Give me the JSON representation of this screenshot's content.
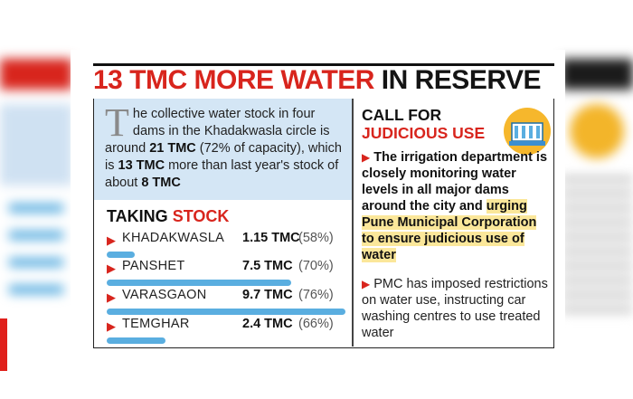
{
  "headline": {
    "part1": "13 TMC MORE WATER",
    "part2": "IN RESERVE"
  },
  "intro": {
    "dropcap": "T",
    "text_a": "he collective water stock in four dams in the Khadakwasla circle is around ",
    "bold_1": "21 TMC",
    "text_b": " (72% of capacity), which is ",
    "bold_2": "13 TMC",
    "text_c": " more than last year's stock of about ",
    "bold_3": "8 TMC"
  },
  "taking_stock": {
    "title_a": "TAKING",
    "title_b": "STOCK",
    "dams": [
      {
        "name": "KHADAKWASLA",
        "amount": "1.15 TMC",
        "percent": "(58%)",
        "tmc": 1.15
      },
      {
        "name": "PANSHET",
        "amount": "7.5 TMC",
        "percent": "(70%)",
        "tmc": 7.5
      },
      {
        "name": "VARASGAON",
        "amount": "9.7 TMC",
        "percent": "(76%)",
        "tmc": 9.7
      },
      {
        "name": "TEMGHAR",
        "amount": "2.4 TMC",
        "percent": "(66%)",
        "tmc": 2.4
      }
    ]
  },
  "call": {
    "title_a": "CALL FOR",
    "title_b": "JUDICIOUS USE",
    "para1_a": "The irrigation department is closely monitoring water levels in all major dams around the city and ",
    "para1_hl": "urging Pune Municipal Corporation to ensure judicious use of water",
    "para2": "PMC has imposed restrictions on water use, instructing car washing centres to use treated water"
  },
  "icons": {
    "arrow": "▶",
    "dam": "dam-icon"
  },
  "colors": {
    "accent_red": "#d8251d",
    "bar_blue": "#5aaee0",
    "intro_bg": "#d4e6f5",
    "highlight": "#fbe79a",
    "icon_yellow": "#f6b72c"
  }
}
